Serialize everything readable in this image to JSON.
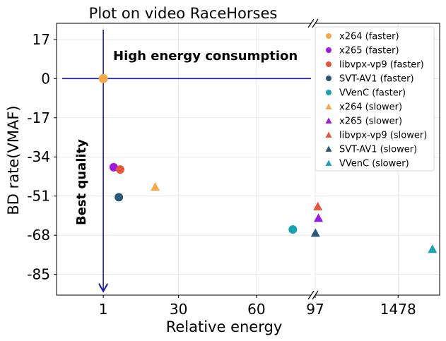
{
  "chart_data": {
    "type": "scatter",
    "title": "Plot on video RaceHorses",
    "xlabel": "Relative energy",
    "ylabel": "BD rate(VMAF)",
    "ylim": [
      -94,
      24
    ],
    "y_ticks": [
      17,
      0,
      -17,
      -34,
      -51,
      -68,
      -85
    ],
    "x_axis_broken": true,
    "x_segments": [
      {
        "xlim": [
          -17,
          81
        ],
        "ticks": [
          1,
          30,
          60
        ]
      },
      {
        "xlim": [
          97,
          2170
        ],
        "ticks": [
          97,
          1478
        ]
      }
    ],
    "grid": true,
    "legend_position": "top-right",
    "annotations": {
      "high_energy": "High energy consumption",
      "best_quality": "Best quality"
    },
    "reference_point": {
      "x": 1,
      "y": 0,
      "color": "#f4a94b"
    },
    "series": [
      {
        "name": "x264 (faster)",
        "marker": "circle",
        "color": "#f4a94b",
        "points": []
      },
      {
        "name": "x265 (faster)",
        "marker": "circle",
        "color": "#9b19e0",
        "points": [
          {
            "x": 5,
            "y": -38.5
          }
        ]
      },
      {
        "name": "libvpx-vp9 (faster)",
        "marker": "circle",
        "color": "#e8553f",
        "points": [
          {
            "x": 7.5,
            "y": -39.5
          }
        ]
      },
      {
        "name": "SVT-AV1 (faster)",
        "marker": "circle",
        "color": "#2b5778",
        "points": [
          {
            "x": 7,
            "y": -51.5
          }
        ]
      },
      {
        "name": "VVenC (faster)",
        "marker": "circle",
        "color": "#1aa2b4",
        "points": [
          {
            "x": 74,
            "y": -65.5
          }
        ]
      },
      {
        "name": "x264 (slower)",
        "marker": "triangle",
        "color": "#f4a94b",
        "points": [
          {
            "x": 21,
            "y": -47
          }
        ]
      },
      {
        "name": "x265 (slower)",
        "marker": "triangle",
        "color": "#9b19e0",
        "points": [
          {
            "x": 150,
            "y": -60.5
          }
        ]
      },
      {
        "name": "libvpx-vp9 (slower)",
        "marker": "triangle",
        "color": "#e8553f",
        "points": [
          {
            "x": 140,
            "y": -55.5
          }
        ]
      },
      {
        "name": "SVT-AV1 (slower)",
        "marker": "triangle",
        "color": "#2b5778",
        "points": [
          {
            "x": 100,
            "y": -67
          }
        ]
      },
      {
        "name": "VVenC (slower)",
        "marker": "triangle",
        "color": "#1aa2b4",
        "points": [
          {
            "x": 2050,
            "y": -74
          }
        ]
      }
    ]
  }
}
